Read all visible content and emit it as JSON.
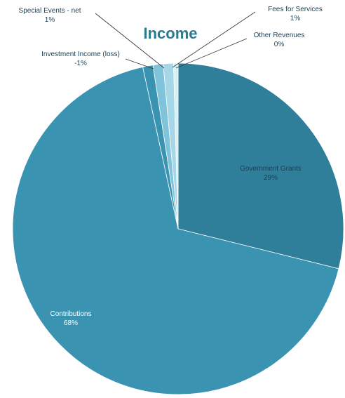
{
  "chart_data": {
    "type": "pie",
    "title": "Income",
    "slices": [
      {
        "label": "Government Grants",
        "value": 29,
        "value_label": "29%",
        "color": "#2f7f9b"
      },
      {
        "label": "Contributions",
        "value": 68,
        "value_label": "68%",
        "color": "#3a93b1"
      },
      {
        "label": "Investment Income (loss)",
        "value": -1,
        "value_label": "-1%",
        "color": "#3a93b1"
      },
      {
        "label": "Special Events - net",
        "value": 1,
        "value_label": "1%",
        "color": "#7fc4da"
      },
      {
        "label": "Fees for Services",
        "value": 1,
        "value_label": "1%",
        "color": "#a7d6e6"
      },
      {
        "label": "Other Revenues",
        "value": 0,
        "value_label": "0%",
        "color": "#d7eef5"
      }
    ]
  },
  "colors": {
    "title": "#2b7a8e",
    "label_dark": "#1b3f52",
    "label_light": "#ffffff",
    "leader_line": "#333333"
  }
}
